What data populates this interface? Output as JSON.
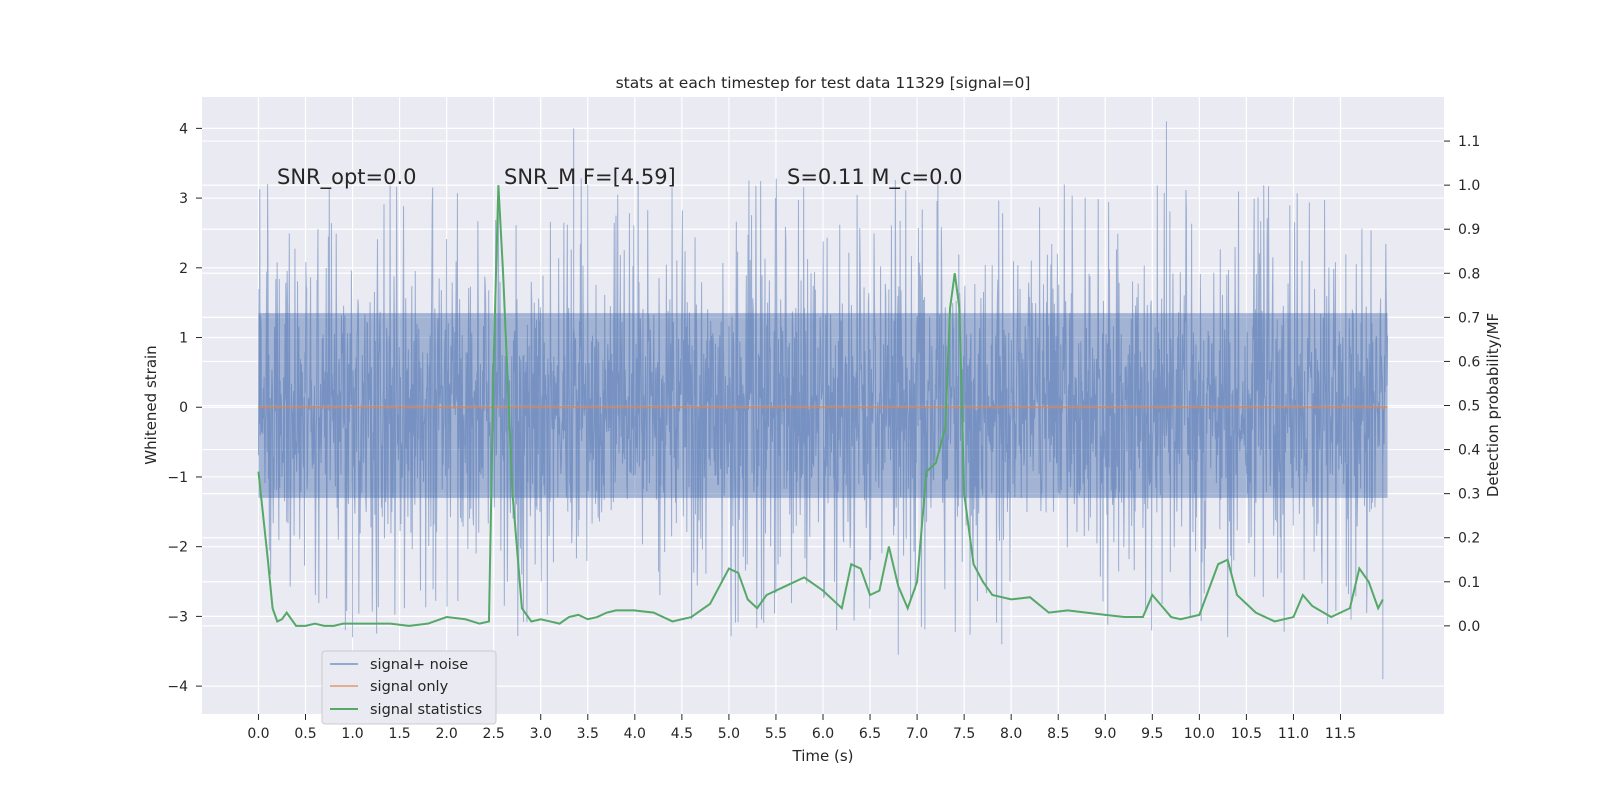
{
  "chart_data": {
    "type": "line",
    "title": "stats at each timestep for test data 11329 [signal=0]",
    "xlabel": "Time (s)",
    "ylabel_left": "Whitened strain",
    "ylabel_right": "Detection probability/MF",
    "xlim": [
      -0.6,
      12.6
    ],
    "ylim_left": [
      -4.4,
      4.45
    ],
    "ylim_right": [
      -0.2,
      1.2
    ],
    "x_ticks": [
      "0.0",
      "0.5",
      "1.0",
      "1.5",
      "2.0",
      "2.5",
      "3.0",
      "3.5",
      "4.0",
      "4.5",
      "5.0",
      "5.5",
      "6.0",
      "6.5",
      "7.0",
      "7.5",
      "8.0",
      "8.5",
      "9.0",
      "9.5",
      "10.0",
      "10.5",
      "11.0",
      "11.5"
    ],
    "y_ticks_left": [
      "−4",
      "−3",
      "−2",
      "−1",
      "0",
      "1",
      "2",
      "3",
      "4"
    ],
    "y_ticks_right": [
      "0.0",
      "0.1",
      "0.2",
      "0.3",
      "0.4",
      "0.5",
      "0.6",
      "0.7",
      "0.8",
      "0.9",
      "1.0",
      "1.1"
    ],
    "grid": true,
    "legend_position": "lower-left",
    "annotations": [
      {
        "text": "SNR_opt=0.0",
        "x": 0.2,
        "y": 3.2
      },
      {
        "text": "SNR_M F=[4.59]",
        "x": 2.6,
        "y": 3.2
      },
      {
        "text": "S=0.11   M_c=0.0",
        "x": 5.6,
        "y": 3.2
      }
    ],
    "colors": {
      "background": "#eaeaf2",
      "grid": "#ffffff",
      "signal_noise": "#4c72b0",
      "signal_only": "#dd8452",
      "signal_stats": "#55a868"
    },
    "series": [
      {
        "name": "signal+ noise",
        "axis": "left",
        "kind": "noise",
        "x_range": [
          0.0,
          12.0
        ],
        "core_band": [
          -1.3,
          1.35
        ],
        "max": 4.1,
        "min": -3.9,
        "typical_peak": [
          2.2,
          3.3
        ],
        "typical_trough": [
          -2.0,
          -3.5
        ]
      },
      {
        "name": "signal only",
        "axis": "left",
        "kind": "flat",
        "x": [
          0.0,
          12.0
        ],
        "y": [
          0.0,
          0.0
        ]
      },
      {
        "name": "signal statistics",
        "axis": "right",
        "kind": "line",
        "x": [
          0.0,
          0.1,
          0.15,
          0.2,
          0.25,
          0.3,
          0.4,
          0.5,
          0.6,
          0.7,
          0.8,
          0.9,
          1.0,
          1.2,
          1.4,
          1.6,
          1.8,
          2.0,
          2.2,
          2.35,
          2.45,
          2.5,
          2.55,
          2.6,
          2.7,
          2.8,
          2.9,
          3.0,
          3.1,
          3.2,
          3.3,
          3.4,
          3.5,
          3.6,
          3.7,
          3.8,
          4.0,
          4.2,
          4.4,
          4.6,
          4.8,
          5.0,
          5.1,
          5.2,
          5.3,
          5.4,
          5.6,
          5.8,
          6.0,
          6.2,
          6.3,
          6.4,
          6.5,
          6.6,
          6.7,
          6.8,
          6.9,
          7.0,
          7.1,
          7.2,
          7.3,
          7.35,
          7.4,
          7.45,
          7.5,
          7.6,
          7.7,
          7.8,
          8.0,
          8.2,
          8.4,
          8.6,
          8.8,
          9.0,
          9.2,
          9.4,
          9.5,
          9.6,
          9.7,
          9.8,
          10.0,
          10.2,
          10.3,
          10.4,
          10.6,
          10.8,
          11.0,
          11.1,
          11.2,
          11.4,
          11.6,
          11.7,
          11.8,
          11.9,
          11.95
        ],
        "y": [
          0.35,
          0.15,
          0.04,
          0.01,
          0.015,
          0.03,
          0.0,
          0.0,
          0.005,
          0.0,
          0.0,
          0.005,
          0.005,
          0.005,
          0.005,
          0.0,
          0.005,
          0.02,
          0.015,
          0.005,
          0.01,
          0.6,
          1.0,
          0.8,
          0.3,
          0.04,
          0.01,
          0.015,
          0.01,
          0.005,
          0.02,
          0.025,
          0.015,
          0.02,
          0.03,
          0.035,
          0.035,
          0.03,
          0.01,
          0.02,
          0.05,
          0.13,
          0.12,
          0.06,
          0.04,
          0.07,
          0.09,
          0.11,
          0.08,
          0.04,
          0.14,
          0.13,
          0.07,
          0.08,
          0.18,
          0.09,
          0.04,
          0.1,
          0.35,
          0.37,
          0.45,
          0.72,
          0.8,
          0.72,
          0.3,
          0.14,
          0.1,
          0.07,
          0.06,
          0.065,
          0.03,
          0.035,
          0.03,
          0.025,
          0.02,
          0.02,
          0.07,
          0.045,
          0.02,
          0.015,
          0.025,
          0.14,
          0.15,
          0.07,
          0.03,
          0.01,
          0.02,
          0.07,
          0.045,
          0.02,
          0.04,
          0.13,
          0.1,
          0.04,
          0.06
        ]
      }
    ]
  }
}
